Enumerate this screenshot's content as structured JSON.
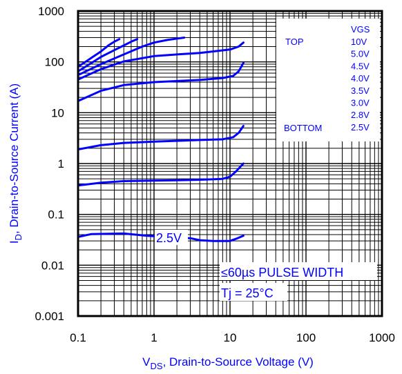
{
  "chart_data": {
    "type": "line",
    "x_scale": "log",
    "y_scale": "log",
    "xlim": [
      0.1,
      1000
    ],
    "ylim": [
      0.001,
      1000
    ],
    "grid": true,
    "xlabel_main": "V",
    "xlabel_sub": "DS",
    "xlabel_rest": ", Drain-to-Source Voltage (V)",
    "ylabel_main": "I",
    "ylabel_sub": "D",
    "ylabel_rest": ", Drain-to-Source Current (A)",
    "x_ticks": [
      "0.1",
      "1",
      "10",
      "100",
      "1000"
    ],
    "y_ticks": [
      "0.001",
      "0.01",
      "0.1",
      "1",
      "10",
      "100",
      "1000"
    ],
    "legend": {
      "header": "VGS",
      "top_label": "TOP",
      "bottom_label": "BOTTOM",
      "entries": [
        "10V",
        "5.0V",
        "4.5V",
        "4.0V",
        "3.5V",
        "3.0V",
        "2.8V",
        "2.5V"
      ]
    },
    "annotations": {
      "curve_label": "2.5V",
      "pulse": "≤60µs PULSE WIDTH",
      "tj": "Tj = 25°C"
    },
    "series": [
      {
        "x": [
          0.1,
          0.15,
          0.2,
          0.25,
          0.3,
          0.35
        ],
        "y": [
          80,
          120,
          160,
          210,
          250,
          280
        ]
      },
      {
        "x": [
          0.1,
          0.15,
          0.2,
          0.3,
          0.4,
          0.5,
          0.6
        ],
        "y": [
          65,
          95,
          125,
          170,
          210,
          250,
          280
        ]
      },
      {
        "x": [
          0.1,
          0.2,
          0.4,
          0.7,
          1,
          1.5,
          2.5
        ],
        "y": [
          55,
          90,
          140,
          200,
          240,
          270,
          300
        ]
      },
      {
        "x": [
          0.1,
          0.2,
          0.4,
          1,
          2,
          4,
          10,
          13,
          15
        ],
        "y": [
          45,
          72,
          102,
          130,
          140,
          150,
          175,
          200,
          240
        ]
      },
      {
        "x": [
          0.1,
          0.2,
          0.4,
          1,
          2,
          4,
          8,
          11,
          13,
          15
        ],
        "y": [
          17,
          27,
          35,
          40,
          42,
          44,
          48,
          53,
          65,
          95
        ]
      },
      {
        "x": [
          0.1,
          0.2,
          0.4,
          1,
          2,
          4,
          8,
          11,
          13,
          15
        ],
        "y": [
          1.9,
          2.3,
          2.55,
          2.7,
          2.8,
          2.9,
          3.0,
          3.3,
          4.0,
          5.5
        ]
      },
      {
        "x": [
          0.1,
          0.2,
          0.4,
          1,
          2,
          4,
          8,
          10,
          12,
          15
        ],
        "y": [
          0.37,
          0.42,
          0.45,
          0.46,
          0.47,
          0.48,
          0.5,
          0.55,
          0.7,
          1.0
        ]
      },
      {
        "x": [
          0.1,
          0.15,
          0.4,
          0.8,
          1.5,
          2,
          3,
          4,
          6,
          10,
          12,
          15
        ],
        "y": [
          0.036,
          0.041,
          0.042,
          0.038,
          0.036,
          0.035,
          0.034,
          0.031,
          0.03,
          0.03,
          0.033,
          0.038
        ]
      }
    ],
    "colors": {
      "curves": "#0000ff",
      "labels": "#0000ff",
      "grid": "#000000"
    }
  }
}
